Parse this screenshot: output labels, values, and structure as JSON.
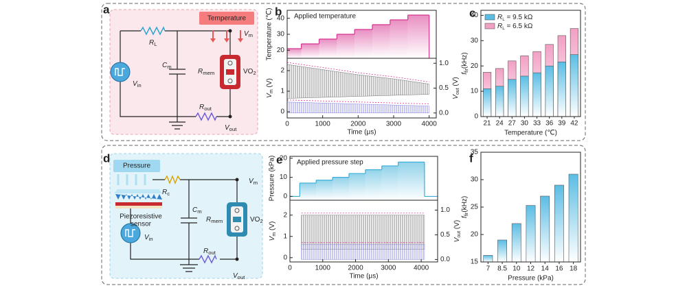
{
  "panels": {
    "a": {
      "letter": "a",
      "heat": "Temperature",
      "rl": {
        "main": "R",
        "sub": "L"
      },
      "vm": {
        "main": "V",
        "sub": "m"
      },
      "cm": {
        "main": "C",
        "sub": "m"
      },
      "rmem": {
        "main": "R",
        "sub": "mem"
      },
      "vo2": {
        "main": "VO",
        "sub": "2"
      },
      "vin": {
        "main": "V",
        "sub": "in"
      },
      "rout": {
        "main": "R",
        "sub": "out"
      },
      "vout": {
        "main": "V",
        "sub": "out"
      }
    },
    "b": {
      "letter": "b"
    },
    "c": {
      "letter": "c"
    },
    "d": {
      "letter": "d",
      "press": "Pressure",
      "rc": {
        "main": "R",
        "sub": "c"
      },
      "vm": {
        "main": "V",
        "sub": "m"
      },
      "cm": {
        "main": "C",
        "sub": "m"
      },
      "rmem": {
        "main": "R",
        "sub": "mem"
      },
      "vo2": {
        "main": "VO",
        "sub": "2"
      },
      "sensor": [
        "Piezoresistive",
        "sensor"
      ],
      "vin": {
        "main": "V",
        "sub": "in"
      },
      "rout": {
        "main": "R",
        "sub": "out"
      },
      "vout": {
        "main": "V",
        "sub": "out"
      }
    },
    "e": {
      "letter": "e"
    },
    "f": {
      "letter": "f"
    }
  },
  "chart_data": [
    {
      "type": "line",
      "xlabel": "Time (μs)",
      "xlim": [
        0,
        4200
      ],
      "xticks": [
        0,
        1000,
        2000,
        3000,
        4000
      ],
      "top": {
        "annotation": "Applied temperature",
        "ylabel": "Temperature (℃)",
        "ylim": [
          15,
          45
        ],
        "yticks": [
          20,
          30,
          40
        ],
        "bins": [
          0,
          400,
          900,
          1400,
          1900,
          2400,
          2900,
          3400,
          4000
        ],
        "values": [
          21,
          24,
          27,
          30,
          33,
          36,
          39,
          42
        ],
        "color": "#d6338f"
      },
      "bottom": {
        "ylabel": {
          "main": "V",
          "sub": "m",
          "rest": " (V)"
        },
        "ylim": [
          -0.3,
          2.6
        ],
        "yticks": [
          0,
          1,
          2
        ],
        "y2label": {
          "main": "V",
          "sub": "out",
          "rest": " (V)"
        },
        "y2lim": [
          -0.1,
          1.1
        ],
        "y2ticks": [
          {
            "value": 0,
            "label": "0.0"
          },
          0.5,
          {
            "value": 1,
            "label": "1.0"
          }
        ],
        "series": [
          {
            "color": "#555555",
            "x": [
              0,
              1000,
              2000,
              3000,
              4000
            ],
            "upper": [
              2.3,
              2.05,
              1.8,
              1.6,
              1.35
            ],
            "lower": [
              0.65,
              0.7,
              0.75,
              0.8,
              0.85
            ]
          },
          {
            "axis": "y2",
            "color": "#6b6bd6",
            "x": [
              0,
              1000,
              2000,
              3000,
              4000
            ],
            "upper": [
              0.22,
              0.2,
              0.18,
              0.16,
              0.14
            ],
            "lower": [
              0,
              0,
              0,
              0,
              0
            ]
          }
        ]
      }
    },
    {
      "type": "bar",
      "xlabel": "Temperature (℃)",
      "ylabel": {
        "main": "f",
        "sub": "fir",
        "rest": "(kHz)"
      },
      "categories": [
        "21",
        "24",
        "27",
        "30",
        "33",
        "36",
        "39",
        "42"
      ],
      "ylim": [
        0,
        42
      ],
      "yticks": [
        0,
        10,
        20,
        30,
        40
      ],
      "legend": "upper left",
      "series": [
        {
          "name": {
            "main": "R",
            "sub": "L",
            "rest": " = 9.5 kΩ"
          },
          "color": "#5bbde4",
          "values": [
            11,
            12,
            14.7,
            16,
            17.3,
            20,
            21.6,
            24.5
          ]
        },
        {
          "name": {
            "main": "R",
            "sub": "L",
            "rest": " = 6.5 kΩ"
          },
          "color": "#f2a0c4",
          "values": [
            17.5,
            19,
            22,
            24,
            25.7,
            28.5,
            32,
            34.8
          ]
        }
      ]
    },
    {
      "type": "line",
      "xlabel": "Time (μs)",
      "xlim": [
        0,
        4500
      ],
      "xticks": [
        0,
        1000,
        2000,
        3000,
        4000
      ],
      "top": {
        "annotation": "Applied pressure step",
        "ylabel": "Pressure (kPa)",
        "ylim": [
          -2,
          21
        ],
        "yticks": [
          0,
          10,
          20
        ],
        "baseline": 0,
        "bins": [
          300,
          800,
          1300,
          1800,
          2300,
          2800,
          3300,
          4100
        ],
        "values": [
          7,
          8.5,
          10,
          12,
          14,
          16,
          18
        ],
        "color": "#3aaed8"
      },
      "bottom": {
        "ylabel": {
          "main": "V",
          "sub": "m",
          "rest": " (V)"
        },
        "ylim": [
          -0.2,
          2.7
        ],
        "yticks": [
          0,
          1,
          2
        ],
        "y2label": {
          "main": "V",
          "sub": "out",
          "rest": " (V)"
        },
        "y2lim": [
          -0.05,
          1.2
        ],
        "y2ticks": [
          {
            "value": 0,
            "label": "0.0"
          },
          0.5,
          {
            "value": 1,
            "label": "1.0"
          }
        ],
        "series": [
          {
            "color": "#555555",
            "x": [
              350,
              4100
            ],
            "upper": [
              2,
              2
            ],
            "lower": [
              0.4,
              0.4
            ]
          },
          {
            "axis": "y2",
            "color": "#6b6bd6",
            "x": [
              350,
              4100
            ],
            "upper": [
              0.3,
              0.3
            ],
            "lower": [
              0,
              0
            ]
          }
        ]
      }
    },
    {
      "type": "bar",
      "xlabel": "Pressure (kPa)",
      "ylabel": {
        "main": "f",
        "sub": "fir",
        "rest": "(kHz)"
      },
      "categories": [
        "7",
        "8.5",
        "10",
        "12",
        "14",
        "16",
        "18"
      ],
      "ylim": [
        15,
        35
      ],
      "yticks": [
        15,
        20,
        25,
        30,
        35
      ],
      "series": [
        {
          "color": "#5bbde4",
          "values": [
            16.2,
            19,
            22,
            25.3,
            27,
            29,
            31
          ]
        }
      ]
    }
  ]
}
